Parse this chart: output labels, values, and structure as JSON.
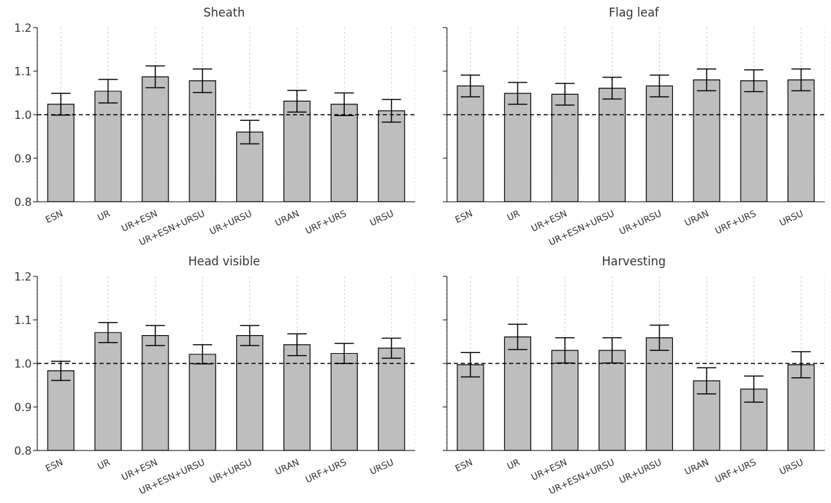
{
  "chart_data": [
    {
      "type": "bar",
      "title": "Sheath",
      "categories": [
        "ESN",
        "UR",
        "UR+ESN",
        "UR+ESN+URSU",
        "UR+URSU",
        "URAN",
        "URF+URS",
        "URSU"
      ],
      "values": [
        1.024,
        1.054,
        1.087,
        1.078,
        0.96,
        1.031,
        1.024,
        1.009
      ],
      "errors": [
        0.025,
        0.027,
        0.025,
        0.027,
        0.027,
        0.025,
        0.026,
        0.026
      ],
      "color": "#bebebe",
      "ylim": [
        0.8,
        1.2
      ],
      "yticks": [
        0.8,
        0.9,
        {
          "value": 1,
          "label": "1.0"
        },
        1.1,
        1.2
      ],
      "grid": "x",
      "ref_lines": [
        {
          "axis": "y",
          "value": 1.0,
          "color": "#000000",
          "line_style": "dashed"
        }
      ]
    },
    {
      "type": "bar",
      "title": "Flag leaf",
      "categories": [
        "ESN",
        "UR",
        "UR+ESN",
        "UR+ESN+URSU",
        "UR+URSU",
        "URAN",
        "URF+URS",
        "URSU"
      ],
      "values": [
        1.066,
        1.049,
        1.047,
        1.061,
        1.066,
        1.08,
        1.078,
        1.08
      ],
      "errors": [
        0.025,
        0.025,
        0.025,
        0.025,
        0.025,
        0.025,
        0.025,
        0.025
      ],
      "color": "#bebebe",
      "ylim": [
        0.8,
        1.2
      ],
      "yticks": [
        {
          "value": 0.8,
          "label": null
        },
        {
          "value": 0.9,
          "label": null
        },
        {
          "value": 1,
          "label": null
        },
        {
          "value": 1.1,
          "label": null
        },
        {
          "value": 1.2,
          "label": null
        }
      ],
      "grid": "x",
      "tick_labels": "x",
      "ref_lines": [
        {
          "axis": "y",
          "value": 1.0,
          "color": "#000000",
          "line_style": "dashed"
        }
      ]
    },
    {
      "type": "bar",
      "title": "Head visible",
      "categories": [
        "ESN",
        "UR",
        "UR+ESN",
        "UR+ESN+URSU",
        "UR+URSU",
        "URAN",
        "URF+URS",
        "URSU"
      ],
      "values": [
        0.983,
        1.071,
        1.064,
        1.021,
        1.064,
        1.043,
        1.023,
        1.035
      ],
      "errors": [
        0.022,
        0.023,
        0.023,
        0.022,
        0.023,
        0.025,
        0.023,
        0.023
      ],
      "color": "#bebebe",
      "ylim": [
        0.8,
        1.2
      ],
      "yticks": [
        0.8,
        0.9,
        {
          "value": 1,
          "label": "1.0"
        },
        1.1,
        1.2
      ],
      "grid": "x",
      "ref_lines": [
        {
          "axis": "y",
          "value": 1.0,
          "color": "#000000",
          "line_style": "dashed"
        }
      ]
    },
    {
      "type": "bar",
      "title": "Harvesting",
      "categories": [
        "ESN",
        "UR",
        "UR+ESN",
        "UR+ESN+URSU",
        "UR+URSU",
        "URAN",
        "URF+URS",
        "URSU"
      ],
      "values": [
        0.997,
        1.061,
        1.03,
        1.03,
        1.059,
        0.96,
        0.941,
        0.997
      ],
      "errors": [
        0.028,
        0.029,
        0.029,
        0.029,
        0.029,
        0.03,
        0.03,
        0.03
      ],
      "color": "#bebebe",
      "ylim": [
        0.8,
        1.2
      ],
      "yticks": [
        {
          "value": 0.8,
          "label": null
        },
        {
          "value": 0.9,
          "label": null
        },
        {
          "value": 1,
          "label": null
        },
        {
          "value": 1.1,
          "label": null
        },
        {
          "value": 1.2,
          "label": null
        }
      ],
      "grid": "x",
      "tick_labels": "x",
      "ref_lines": [
        {
          "axis": "y",
          "value": 1.0,
          "color": "#000000",
          "line_style": "dashed"
        }
      ]
    }
  ]
}
